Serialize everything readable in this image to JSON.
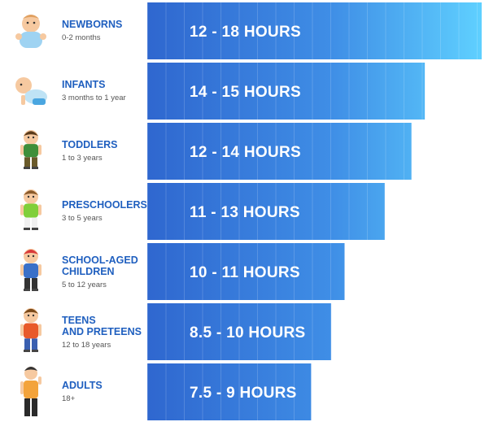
{
  "chart_data": {
    "type": "bar",
    "orientation": "horizontal",
    "value_unit": "hours of sleep per day",
    "groups": [
      {
        "title": [
          "NEWBORNS"
        ],
        "range": "0-2 months",
        "label": "12 - 18 HOURS",
        "min": 12,
        "max": 18,
        "icon": "baby-icon"
      },
      {
        "title": [
          "INFANTS"
        ],
        "range": "3 months to 1 year",
        "label": "14 - 15 HOURS",
        "min": 14,
        "max": 15,
        "icon": "crawling-infant-icon"
      },
      {
        "title": [
          "TODDLERS"
        ],
        "range": "1 to 3 years",
        "label": "12 - 14 HOURS",
        "min": 12,
        "max": 14,
        "icon": "toddler-icon"
      },
      {
        "title": [
          "PRESCHOOLERS"
        ],
        "range": "3 to 5 years",
        "label": "11 - 13 HOURS",
        "min": 11,
        "max": 13,
        "icon": "preschooler-icon"
      },
      {
        "title": [
          "SCHOOL-AGED",
          "CHILDREN"
        ],
        "range": "5 to 12 years",
        "label": "10 - 11 HOURS",
        "min": 10,
        "max": 11,
        "icon": "school-child-icon"
      },
      {
        "title": [
          "TEENS",
          "AND PRETEENS"
        ],
        "range": "12 to 18 years",
        "label": "8.5 - 10 HOURS",
        "min": 8.5,
        "max": 10,
        "icon": "teen-icon"
      },
      {
        "title": [
          "ADULTS"
        ],
        "range": "18+",
        "label": "7.5 - 9 HOURS",
        "min": 7.5,
        "max": 9,
        "icon": "adult-icon"
      }
    ],
    "bar_length_fraction": [
      1.0,
      0.83,
      0.79,
      0.71,
      0.59,
      0.55,
      0.49
    ],
    "grid": false,
    "legend": "none"
  },
  "colors": {
    "bar_start": "#2f67cf",
    "bar_end": "#5fd0ff",
    "title_text": "#1f5fbf",
    "sub_text": "#555555",
    "bar_text": "#ffffff"
  }
}
